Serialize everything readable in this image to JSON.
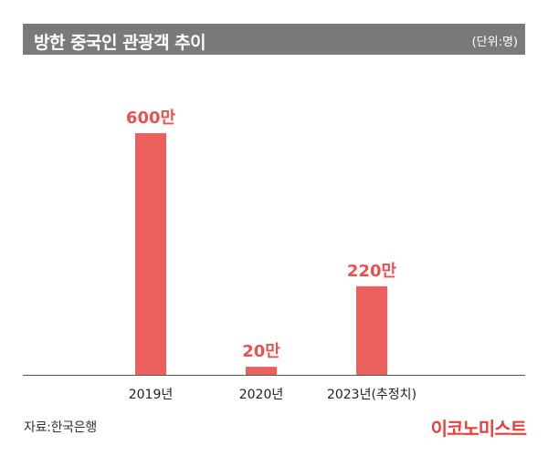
{
  "header": {
    "title": "방한 중국인 관광객 추이",
    "unit": "(단위:명)"
  },
  "footer": {
    "source": "자료:한국은행",
    "logo_text": "이코노미스트"
  },
  "colors": {
    "bar": "#eb5f5c",
    "label": "#e8534f",
    "title_bg": "#7a7a7a",
    "logo": "#e8403a"
  },
  "chart_data": {
    "type": "bar",
    "categories": [
      "2019년",
      "2020년",
      "2023년(추정치)"
    ],
    "values": [
      6000000,
      200000,
      2200000
    ],
    "data_labels": [
      "600만",
      "20만",
      "220만"
    ],
    "title": "방한 중국인 관광객 추이",
    "unit": "(단위:명)",
    "ylim": [
      0,
      6000000
    ],
    "grid": false,
    "legend": "none"
  }
}
